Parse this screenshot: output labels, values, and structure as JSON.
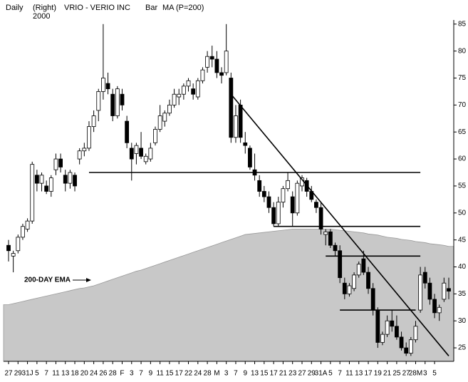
{
  "chart_data": {
    "type": "candlestick",
    "header": {
      "period": "Daily",
      "axis_side": "(Right)",
      "year": "2000",
      "title": "VRIO - VERIO INC",
      "style": "Bar",
      "indicator": "MA (P=200)"
    },
    "annotation": "200-DAY EMA",
    "categories": [
      "27",
      null,
      "29",
      null,
      "31J",
      null,
      "5",
      null,
      "7",
      null,
      "11",
      null,
      "13",
      null,
      "18",
      null,
      "20",
      null,
      "24",
      null,
      "26",
      null,
      "28",
      null,
      "F",
      null,
      "3",
      null,
      "7",
      null,
      "9",
      null,
      "11",
      null,
      "15",
      null,
      "17",
      null,
      "22",
      null,
      "24",
      null,
      "28",
      null,
      "M",
      null,
      "3",
      null,
      "7",
      null,
      "9",
      null,
      "13",
      null,
      "15",
      null,
      "17",
      null,
      "21",
      null,
      "23",
      null,
      "27",
      null,
      "29",
      null,
      "31A",
      null,
      "5",
      null,
      "7",
      null,
      "11",
      null,
      "13",
      null,
      "17",
      null,
      "19",
      null,
      "21",
      null,
      "25",
      null,
      "27",
      null,
      "28M",
      null,
      "3",
      null,
      "5",
      null,
      null,
      null
    ],
    "open": [
      44,
      42,
      43,
      45.5,
      47,
      48.5,
      57,
      55.5,
      55,
      54,
      58,
      60,
      57,
      55.5,
      57,
      60,
      61.5,
      62,
      66,
      69,
      72.5,
      74,
      72,
      68,
      72,
      67,
      62,
      61,
      62,
      59.5,
      60,
      63,
      65.5,
      67,
      68.5,
      70,
      71.5,
      72,
      73.5,
      73,
      71.5,
      74.5,
      77,
      79,
      78.5,
      76,
      76,
      75,
      64,
      70,
      63,
      62,
      58,
      56,
      54,
      53,
      51,
      48,
      52,
      54.5,
      53,
      50,
      55,
      56,
      54,
      52,
      51,
      46,
      46.5,
      44,
      43,
      37,
      35,
      36,
      38.5,
      41.5,
      39,
      36,
      32,
      26,
      27.5,
      30,
      29,
      27,
      25,
      24,
      26.5,
      32,
      39,
      37,
      34,
      31.5,
      34,
      36
    ],
    "high": [
      45,
      43,
      46,
      48,
      49,
      59.5,
      58,
      57.5,
      56,
      57,
      61,
      61,
      58,
      58,
      57.5,
      62,
      63,
      67,
      69,
      73,
      85,
      76,
      73,
      73.5,
      73,
      68,
      63,
      63,
      65,
      61,
      63,
      66,
      70,
      69,
      71,
      73,
      73,
      74,
      75,
      74,
      75,
      77,
      80,
      81,
      80,
      77,
      85,
      76,
      70,
      71,
      65,
      62.5,
      61,
      57,
      55,
      54,
      52,
      53,
      55,
      57.5,
      54,
      56,
      57,
      56.5,
      55,
      52.5,
      52,
      47,
      47,
      44.5,
      44,
      38,
      37,
      39,
      41,
      43,
      40,
      37,
      32.5,
      28,
      31,
      32,
      31,
      28,
      26,
      27,
      30,
      40,
      40,
      38,
      35,
      33,
      38,
      38
    ],
    "low": [
      41,
      39,
      42.5,
      45,
      46.5,
      48,
      54,
      54,
      53.5,
      53,
      57,
      57.5,
      54,
      54.5,
      54,
      59,
      60.5,
      61.5,
      65,
      67,
      71,
      72,
      67,
      67.5,
      69,
      62,
      56,
      59,
      60,
      59,
      59.5,
      62.5,
      65,
      66,
      68,
      69.5,
      70,
      71,
      72.5,
      71,
      71,
      74,
      76,
      77,
      75,
      74,
      75.5,
      63,
      63,
      63,
      61,
      58,
      56,
      53,
      52,
      50,
      47.5,
      47.5,
      51,
      54,
      47.5,
      49.5,
      54,
      53,
      52,
      50,
      46,
      44,
      43.5,
      42,
      37,
      34,
      34.5,
      35.5,
      38,
      38.5,
      35,
      31,
      25,
      25.5,
      27,
      28,
      26.5,
      24.5,
      23.5,
      23.5,
      26,
      31.5,
      36,
      33,
      30.5,
      30,
      33.5,
      34
    ],
    "close": [
      43,
      42.5,
      45.5,
      47.5,
      48.5,
      59,
      55.5,
      57,
      54,
      56.5,
      60,
      58.5,
      55.5,
      57.5,
      55,
      61.5,
      62,
      66,
      68,
      72.5,
      75,
      73,
      68,
      73,
      70,
      63,
      60,
      62.5,
      60.5,
      60.5,
      62,
      65.5,
      68,
      68.5,
      70,
      72,
      72,
      73.5,
      74.5,
      72,
      74.5,
      76.5,
      79,
      78.5,
      76,
      75.5,
      80,
      64,
      68,
      64,
      62.5,
      58.5,
      57,
      54,
      53,
      51,
      48,
      52,
      54.5,
      56,
      50,
      55.5,
      56.5,
      54,
      52.5,
      51,
      47,
      46.5,
      44,
      43,
      38,
      35,
      36.5,
      38.5,
      40.5,
      39,
      36,
      32,
      26,
      27.5,
      30,
      29,
      27,
      25,
      24,
      26.5,
      29,
      38.5,
      37,
      34,
      31.5,
      32.5,
      37,
      35.5
    ],
    "up_color": "#ffffff",
    "down_color": "#000000",
    "ema": {
      "color": "#c8c8c8",
      "values": [
        33,
        33.2,
        33.4,
        33.6,
        33.8,
        34,
        34.2,
        34.4,
        34.6,
        34.8,
        35,
        35.2,
        35.4,
        35.6,
        35.8,
        36,
        36.1,
        36.3,
        36.5,
        36.8,
        37.1,
        37.4,
        37.7,
        38,
        38.3,
        38.6,
        38.9,
        39.2,
        39.4,
        39.7,
        40,
        40.3,
        40.6,
        40.9,
        41.2,
        41.5,
        41.8,
        42.1,
        42.4,
        42.7,
        43,
        43.3,
        43.6,
        43.9,
        44.2,
        44.5,
        44.8,
        45.1,
        45.4,
        45.7,
        46,
        46.1,
        46.2,
        46.3,
        46.4,
        46.5,
        46.6,
        46.7,
        46.8,
        46.9,
        47,
        47,
        47,
        47,
        47,
        47,
        47,
        47,
        47,
        46.9,
        46.8,
        46.7,
        46.6,
        46.5,
        46.4,
        46.3,
        46.1,
        46,
        45.9,
        45.7,
        45.5,
        45.4,
        45.3,
        45.1,
        45,
        44.9,
        44.7,
        44.6,
        44.5,
        44.3,
        44.2,
        44.1,
        44,
        43.8
      ]
    },
    "trendlines": [
      {
        "from": 17,
        "to": 87,
        "start": 57.5,
        "end": 57.5
      },
      {
        "from": 56,
        "to": 87,
        "start": 47.5,
        "end": 47.5
      },
      {
        "from": 67,
        "to": 87,
        "start": 42,
        "end": 42
      },
      {
        "from": 70,
        "to": 86,
        "start": 32,
        "end": 32
      },
      {
        "from": 47,
        "to": 93,
        "start": 72,
        "end": 23.5
      }
    ],
    "ylim": [
      22.5,
      85.5
    ],
    "yticks": [
      25,
      30,
      35,
      40,
      45,
      50,
      55,
      60,
      65,
      70,
      75,
      80,
      85
    ]
  }
}
